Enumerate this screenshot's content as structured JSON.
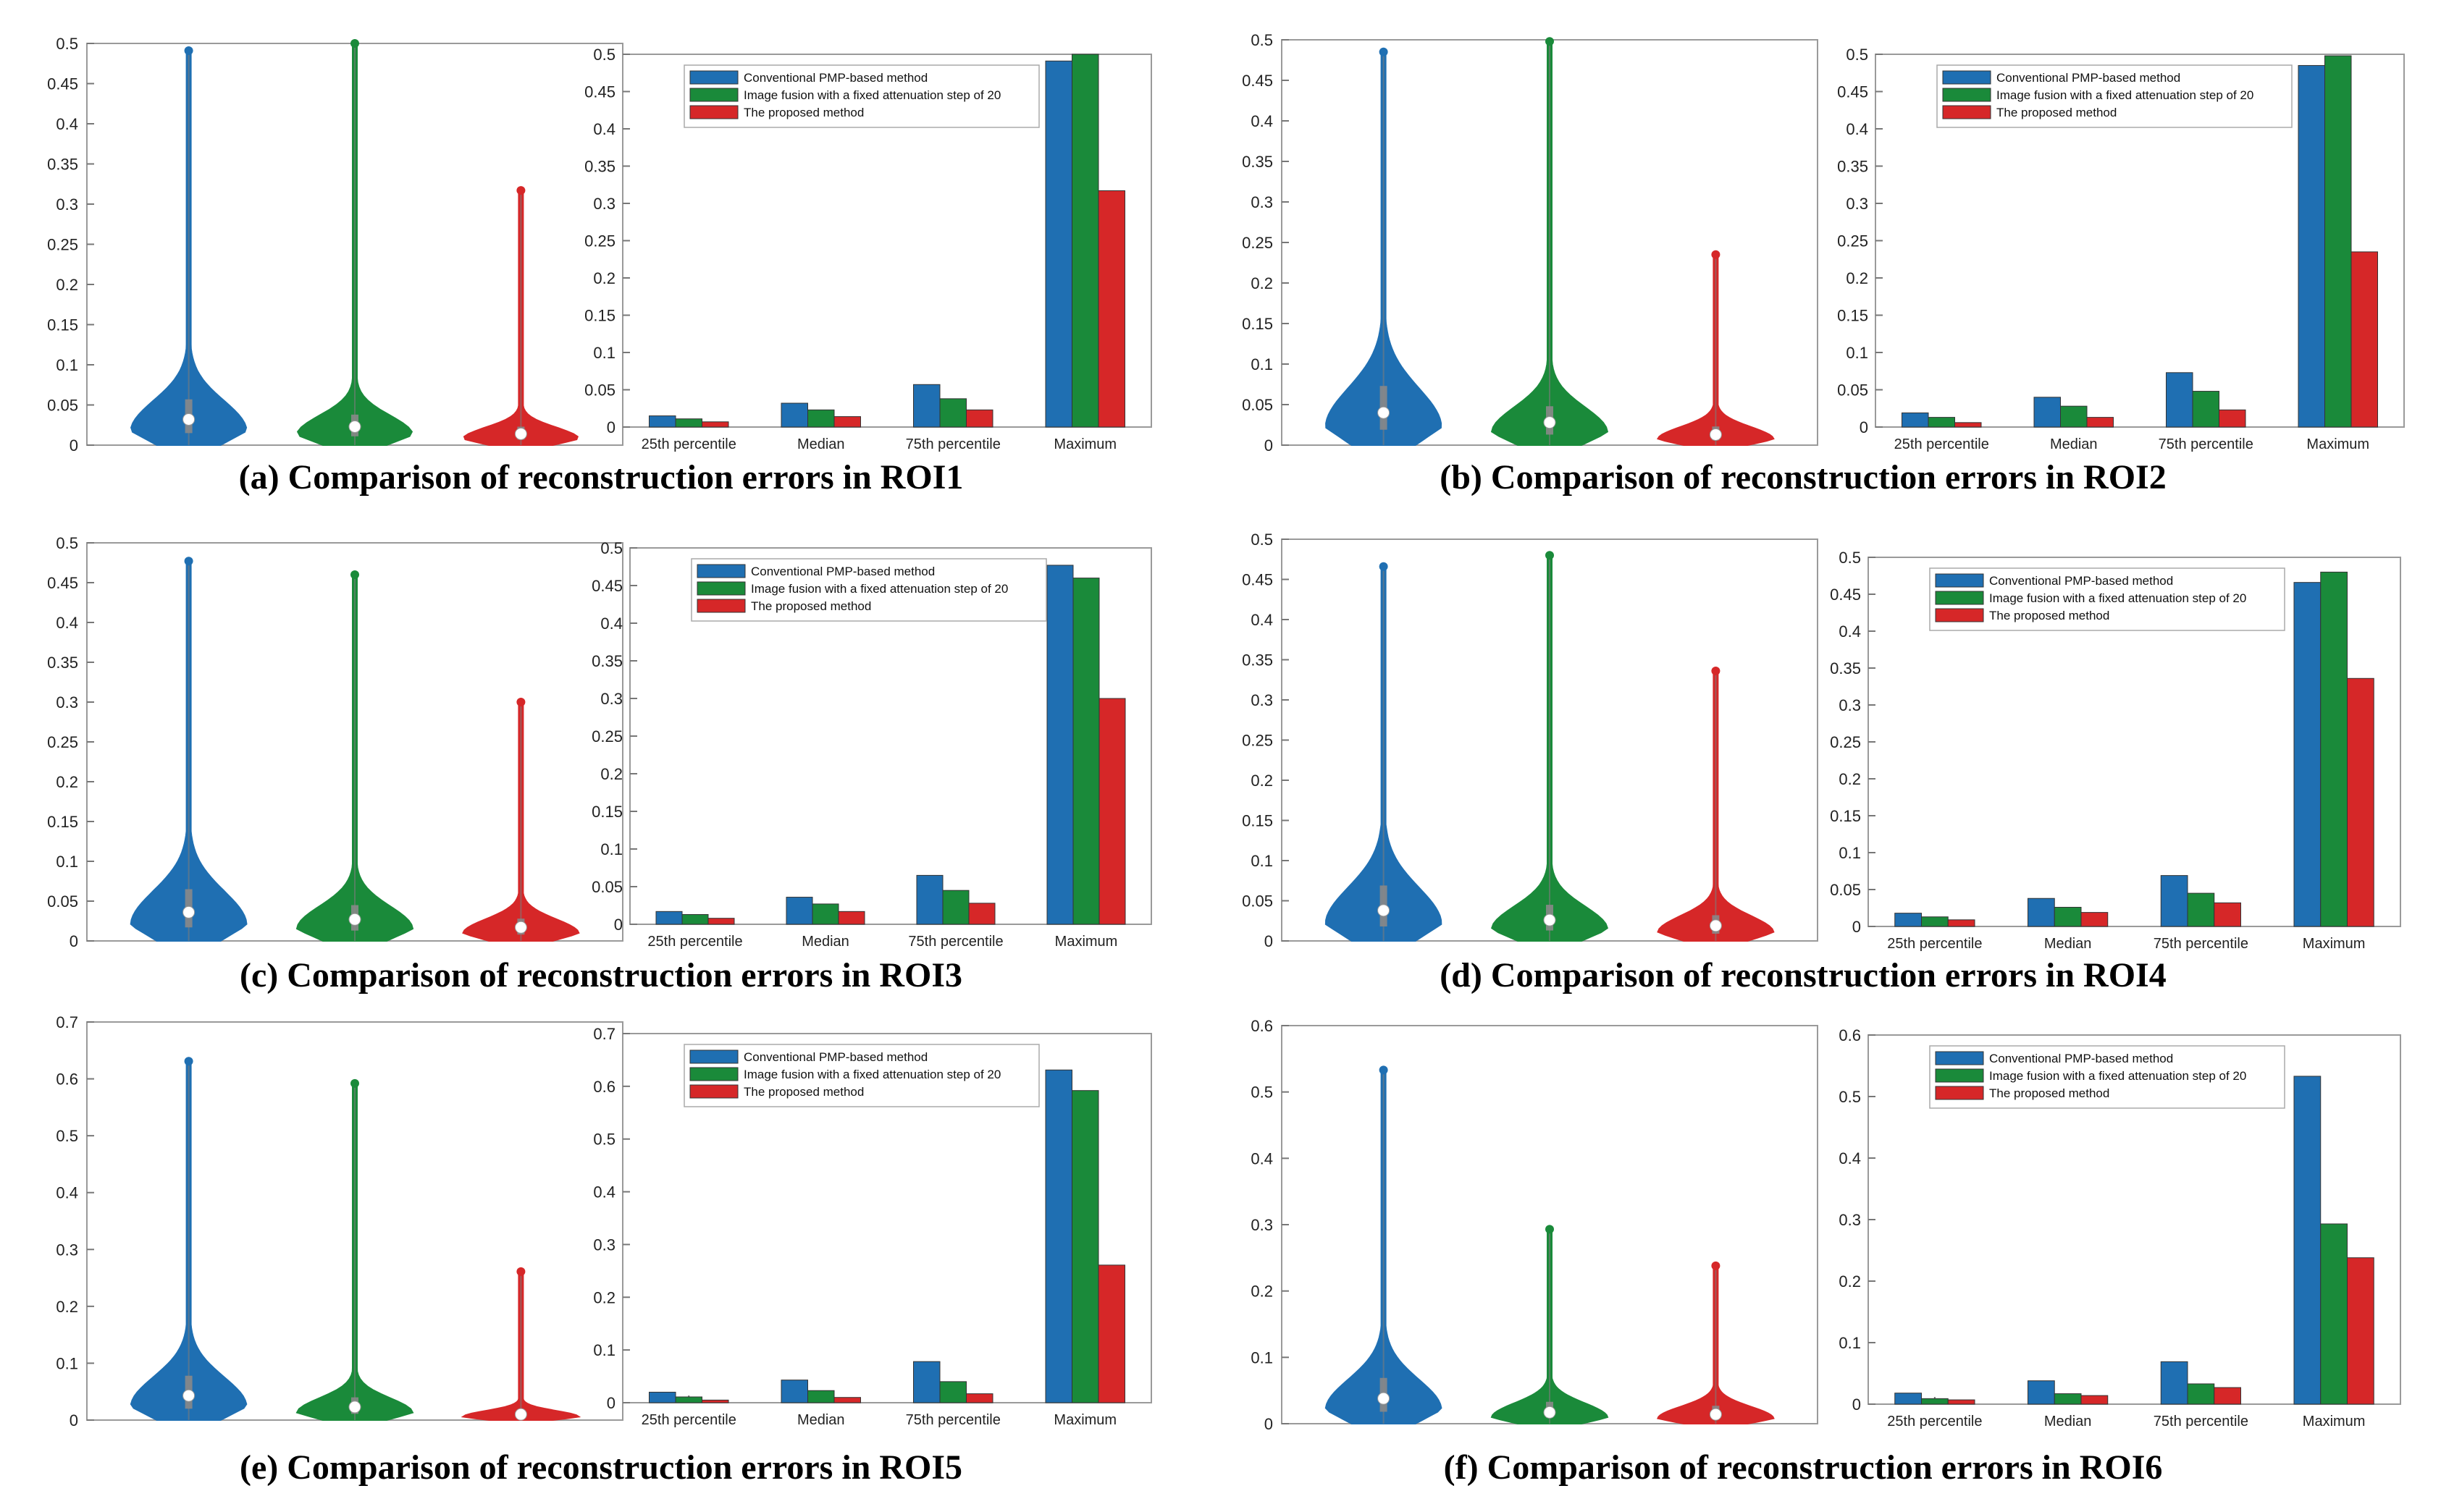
{
  "colors": {
    "conventional": "#1f6fb2",
    "fusion": "#1a8a3a",
    "proposed": "#d62728",
    "axis": "#444444",
    "text": "#222222"
  },
  "legend_labels": [
    "Conventional PMP-based method",
    "Image fusion with a fixed attenuation step of 20",
    "The proposed method"
  ],
  "chart_data": [
    {
      "id": "a",
      "type": "violin+bar",
      "title": "(a) Comparison of reconstruction errors in ROI1",
      "ylim": [
        0,
        0.5
      ],
      "yticks": [
        "0",
        "0.05",
        "0.1",
        "0.15",
        "0.2",
        "0.25",
        "0.3",
        "0.35",
        "0.4",
        "0.45",
        "0.5"
      ],
      "categories": [
        "25th percentile",
        "Median",
        "75th percentile",
        "Maximum"
      ],
      "series": [
        {
          "name": "Conventional PMP-based method",
          "values": [
            0.015,
            0.032,
            0.057,
            0.491
          ]
        },
        {
          "name": "Image fusion with a fixed attenuation step of 20",
          "values": [
            0.011,
            0.023,
            0.038,
            0.5
          ]
        },
        {
          "name": "The proposed method",
          "values": [
            0.007,
            0.014,
            0.023,
            0.317
          ]
        }
      ]
    },
    {
      "id": "b",
      "type": "violin+bar",
      "title": "(b) Comparison of reconstruction errors in ROI2",
      "ylim": [
        0,
        0.5
      ],
      "yticks": [
        "0",
        "0.05",
        "0.1",
        "0.15",
        "0.2",
        "0.25",
        "0.3",
        "0.35",
        "0.4",
        "0.45",
        "0.5"
      ],
      "categories": [
        "25th percentile",
        "Median",
        "75th percentile",
        "Maximum"
      ],
      "series": [
        {
          "name": "Conventional PMP-based method",
          "values": [
            0.019,
            0.04,
            0.073,
            0.485
          ]
        },
        {
          "name": "Image fusion with a fixed attenuation step of 20",
          "values": [
            0.013,
            0.028,
            0.048,
            0.498
          ]
        },
        {
          "name": "The proposed method",
          "values": [
            0.006,
            0.013,
            0.023,
            0.235
          ]
        }
      ]
    },
    {
      "id": "c",
      "type": "violin+bar",
      "title": "(c) Comparison of reconstruction errors in ROI3",
      "ylim": [
        0,
        0.5
      ],
      "yticks": [
        "0",
        "0.05",
        "0.1",
        "0.15",
        "0.2",
        "0.25",
        "0.3",
        "0.35",
        "0.4",
        "0.45",
        "0.5"
      ],
      "categories": [
        "25th percentile",
        "Median",
        "75th percentile",
        "Maximum"
      ],
      "series": [
        {
          "name": "Conventional PMP-based method",
          "values": [
            0.017,
            0.036,
            0.065,
            0.477
          ]
        },
        {
          "name": "Image fusion with a fixed attenuation step of 20",
          "values": [
            0.013,
            0.027,
            0.045,
            0.46
          ]
        },
        {
          "name": "The proposed method",
          "values": [
            0.008,
            0.017,
            0.028,
            0.3
          ]
        }
      ]
    },
    {
      "id": "d",
      "type": "violin+bar",
      "title": "(d) Comparison of reconstruction errors in ROI4",
      "ylim": [
        0,
        0.5
      ],
      "yticks": [
        "0",
        "0.05",
        "0.1",
        "0.15",
        "0.2",
        "0.25",
        "0.3",
        "0.35",
        "0.4",
        "0.45",
        "0.5"
      ],
      "categories": [
        "25th percentile",
        "Median",
        "75th percentile",
        "Maximum"
      ],
      "series": [
        {
          "name": "Conventional PMP-based method",
          "values": [
            0.018,
            0.038,
            0.069,
            0.466
          ]
        },
        {
          "name": "Image fusion with a fixed attenuation step of 20",
          "values": [
            0.013,
            0.026,
            0.045,
            0.48
          ]
        },
        {
          "name": "The proposed method",
          "values": [
            0.009,
            0.019,
            0.032,
            0.336
          ]
        }
      ]
    },
    {
      "id": "e",
      "type": "violin+bar",
      "title": "(e) Comparison of reconstruction errors in ROI5",
      "ylim": [
        0,
        0.7
      ],
      "yticks": [
        "0",
        "0.1",
        "0.2",
        "0.3",
        "0.4",
        "0.5",
        "0.6",
        "0.7"
      ],
      "categories": [
        "25th percentile",
        "Median",
        "75th percentile",
        "Maximum"
      ],
      "series": [
        {
          "name": "Conventional PMP-based method",
          "values": [
            0.02,
            0.043,
            0.078,
            0.631
          ]
        },
        {
          "name": "Image fusion with a fixed attenuation step of 20",
          "values": [
            0.011,
            0.023,
            0.04,
            0.592
          ]
        },
        {
          "name": "The proposed method",
          "values": [
            0.005,
            0.01,
            0.017,
            0.261
          ]
        }
      ]
    },
    {
      "id": "f",
      "type": "violin+bar",
      "title": "(f) Comparison of reconstruction errors in ROI6",
      "ylim": [
        0,
        0.6
      ],
      "yticks": [
        "0",
        "0.1",
        "0.2",
        "0.3",
        "0.4",
        "0.5",
        "0.6"
      ],
      "categories": [
        "25th percentile",
        "Median",
        "75th percentile",
        "Maximum"
      ],
      "series": [
        {
          "name": "Conventional PMP-based method",
          "values": [
            0.018,
            0.038,
            0.069,
            0.533
          ]
        },
        {
          "name": "Image fusion with a fixed attenuation step of 20",
          "values": [
            0.009,
            0.017,
            0.033,
            0.293
          ]
        },
        {
          "name": "The proposed method",
          "values": [
            0.007,
            0.014,
            0.027,
            0.238
          ]
        }
      ]
    }
  ]
}
